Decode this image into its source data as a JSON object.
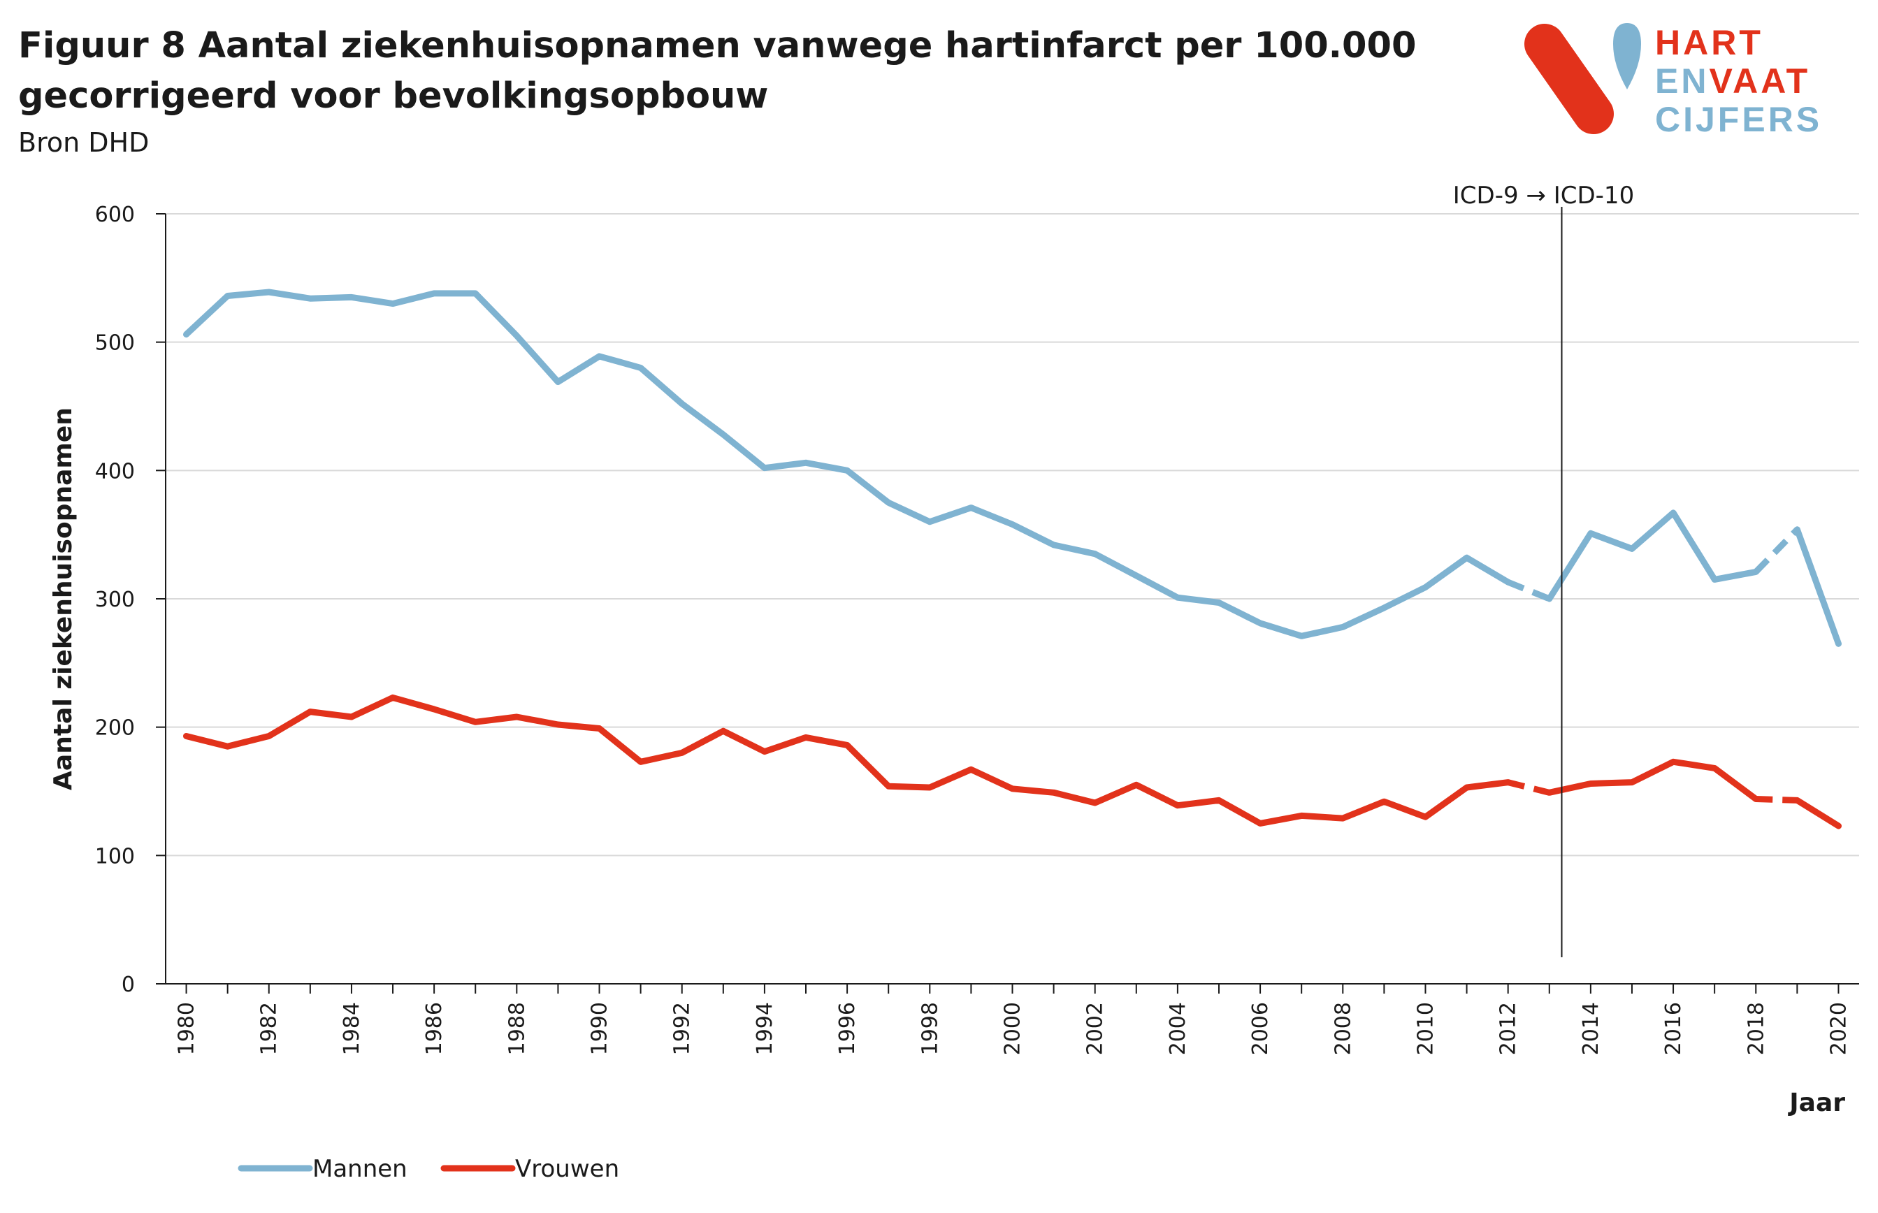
{
  "figure": {
    "title": "Figuur 8 Aantal ziekenhuisopnamen vanwege hartinfarct per 100.000 gecorrigeerd voor bevolkingsopbouw",
    "source": "Bron DHD"
  },
  "logo": {
    "line1": "HART",
    "line2a": "EN",
    "line2b": "VAAT",
    "line3": "CIJFERS",
    "colors": {
      "red": "#e2321b",
      "blue": "#7fb3d1"
    }
  },
  "chart_data": {
    "type": "line",
    "title": "Figuur 8 Aantal ziekenhuisopnamen vanwege hartinfarct per 100.000 gecorrigeerd voor bevolkingsopbouw",
    "xlabel": "Jaar",
    "ylabel": "Aantal ziekenhuisopnamen",
    "ylim": [
      0,
      600
    ],
    "yticks": [
      0,
      100,
      200,
      300,
      400,
      500,
      600
    ],
    "xlim": [
      1980,
      2020
    ],
    "xticks": [
      1980,
      1982,
      1984,
      1986,
      1988,
      1990,
      1992,
      1994,
      1996,
      1998,
      2000,
      2002,
      2004,
      2006,
      2008,
      2010,
      2012,
      2014,
      2016,
      2018,
      2020
    ],
    "grid": "horizontal",
    "legend_position": "bottom-left",
    "annotation": {
      "label": "ICD-9 → ICD-10",
      "x": 2013.3
    },
    "dashed_segments": [
      [
        2012,
        2013
      ],
      [
        2018,
        2019
      ]
    ],
    "x": [
      1980,
      1981,
      1982,
      1983,
      1984,
      1985,
      1986,
      1987,
      1988,
      1989,
      1990,
      1991,
      1992,
      1993,
      1994,
      1995,
      1996,
      1997,
      1998,
      1999,
      2000,
      2001,
      2002,
      2003,
      2004,
      2005,
      2006,
      2007,
      2008,
      2009,
      2010,
      2011,
      2012,
      2013,
      2014,
      2015,
      2016,
      2017,
      2018,
      2019,
      2020
    ],
    "series": [
      {
        "name": "Mannen",
        "color": "#7fb3d1",
        "values": [
          506,
          536,
          539,
          534,
          535,
          530,
          538,
          538,
          505,
          469,
          489,
          480,
          452,
          428,
          402,
          406,
          400,
          375,
          360,
          371,
          358,
          342,
          335,
          318,
          301,
          297,
          281,
          271,
          278,
          293,
          309,
          332,
          313,
          300,
          351,
          339,
          367,
          315,
          321,
          354,
          265
        ]
      },
      {
        "name": "Vrouwen",
        "color": "#e2321b",
        "values": [
          193,
          185,
          193,
          212,
          208,
          223,
          214,
          204,
          208,
          202,
          199,
          173,
          180,
          197,
          181,
          192,
          186,
          154,
          153,
          167,
          152,
          149,
          141,
          155,
          139,
          143,
          125,
          131,
          129,
          142,
          130,
          153,
          157,
          149,
          156,
          157,
          173,
          168,
          144,
          143,
          123
        ]
      }
    ]
  }
}
